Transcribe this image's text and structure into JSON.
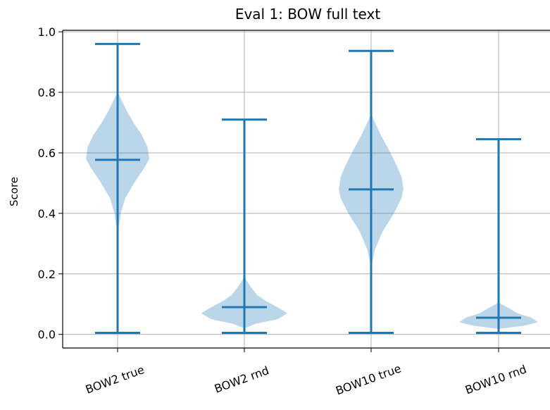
{
  "chart_data": {
    "type": "violin",
    "title": "Eval 1: BOW full text",
    "xlabel": "",
    "ylabel": "Score",
    "ylim": [
      -0.045,
      1.005
    ],
    "yticks": [
      0.0,
      0.2,
      0.4,
      0.6,
      0.8,
      1.0
    ],
    "ytick_labels": [
      "0.0",
      "0.2",
      "0.4",
      "0.6",
      "0.8",
      "1.0"
    ],
    "grid": true,
    "color": "#1f77b4",
    "categories": [
      "BOW2 true",
      "BOW2 rnd",
      "BOW10 true",
      "BOW10 rnd"
    ],
    "series": [
      {
        "min": 0.005,
        "max": 0.96,
        "median": 0.577,
        "density": [
          [
            0.33,
            0.0
          ],
          [
            0.4,
            0.05
          ],
          [
            0.45,
            0.12
          ],
          [
            0.5,
            0.26
          ],
          [
            0.55,
            0.42
          ],
          [
            0.58,
            0.5
          ],
          [
            0.62,
            0.47
          ],
          [
            0.66,
            0.38
          ],
          [
            0.7,
            0.25
          ],
          [
            0.74,
            0.14
          ],
          [
            0.78,
            0.05
          ],
          [
            0.8,
            0.0
          ]
        ]
      },
      {
        "min": 0.005,
        "max": 0.71,
        "median": 0.09,
        "density": [
          [
            0.02,
            0.0
          ],
          [
            0.035,
            0.18
          ],
          [
            0.05,
            0.52
          ],
          [
            0.07,
            0.68
          ],
          [
            0.09,
            0.52
          ],
          [
            0.11,
            0.34
          ],
          [
            0.13,
            0.2
          ],
          [
            0.16,
            0.09
          ],
          [
            0.19,
            0.0
          ]
        ]
      },
      {
        "min": 0.005,
        "max": 0.937,
        "median": 0.479,
        "density": [
          [
            0.22,
            0.0
          ],
          [
            0.28,
            0.06
          ],
          [
            0.34,
            0.18
          ],
          [
            0.4,
            0.36
          ],
          [
            0.45,
            0.48
          ],
          [
            0.48,
            0.51
          ],
          [
            0.52,
            0.48
          ],
          [
            0.56,
            0.4
          ],
          [
            0.61,
            0.28
          ],
          [
            0.66,
            0.15
          ],
          [
            0.7,
            0.06
          ],
          [
            0.73,
            0.0
          ]
        ]
      },
      {
        "min": 0.005,
        "max": 0.645,
        "median": 0.055,
        "density": [
          [
            0.018,
            0.0
          ],
          [
            0.028,
            0.38
          ],
          [
            0.04,
            0.62
          ],
          [
            0.055,
            0.52
          ],
          [
            0.07,
            0.3
          ],
          [
            0.09,
            0.13
          ],
          [
            0.105,
            0.0
          ]
        ]
      }
    ]
  }
}
